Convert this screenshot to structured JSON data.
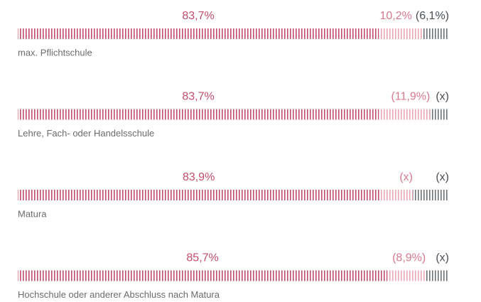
{
  "chart_data": {
    "type": "bar",
    "orientation": "horizontal",
    "stacked": true,
    "categories": [
      "max. Pflichtschule",
      "Lehre, Fach- oder Handelsschule",
      "Matura",
      "Hochschule oder anderer Abschluss nach Matura"
    ],
    "xlim": [
      0,
      100
    ],
    "series": [
      {
        "color": "#c24d6b",
        "label_color": "#c24d6b",
        "values": [
          83.7,
          83.7,
          83.9,
          85.7
        ],
        "value_labels": [
          "83,7%",
          "83,7%",
          "83,9%",
          "85,7%"
        ]
      },
      {
        "color": "#eba7b5",
        "label_color": "#d77a8f",
        "values": [
          10.2,
          11.9,
          7.7,
          8.9
        ],
        "value_labels": [
          "10,2%",
          "(11,9%)",
          "(x)",
          "(8,9%)"
        ]
      },
      {
        "color": "#6e7378",
        "label_color": "#4a4f55",
        "values": [
          6.1,
          4.4,
          8.4,
          5.4
        ],
        "value_labels": [
          "(6,1%)",
          "(x)",
          "(x)",
          "(x)"
        ]
      }
    ]
  }
}
